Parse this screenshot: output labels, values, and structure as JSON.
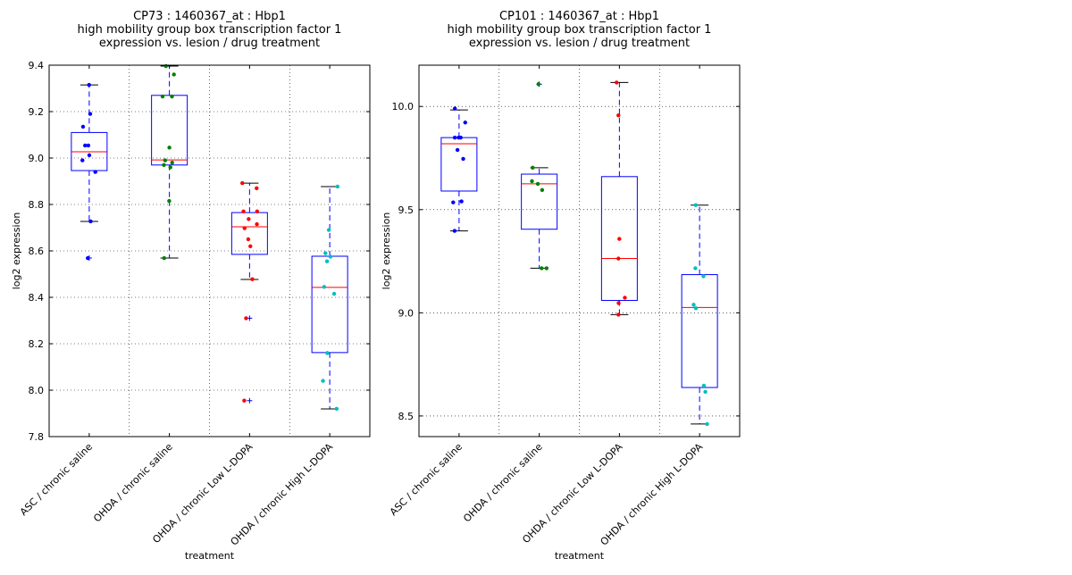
{
  "chart_data": [
    {
      "type": "box",
      "title_lines": [
        "CP73 : 1460367_at : Hbp1",
        "high mobility group box transcription factor 1",
        "expression vs. lesion / drug treatment"
      ],
      "xlabel": "treatment",
      "ylabel": "log2 expression",
      "ylim": [
        7.8,
        9.4
      ],
      "yticks": [
        7.8,
        8.0,
        8.2,
        8.4,
        8.6,
        8.8,
        9.0,
        9.2,
        9.4
      ],
      "ytick_labels": [
        "7.8",
        "8.0",
        "8.2",
        "8.4",
        "8.6",
        "8.8",
        "9.0",
        "9.2",
        "9.4"
      ],
      "grid": true,
      "categories": [
        "ASC / chronic saline",
        "OHDA / chronic saline",
        "OHDA / chronic Low L-DOPA",
        "OHDA / chronic High L-DOPA"
      ],
      "groups": [
        {
          "color": "#0000ff",
          "q1": 8.946,
          "median": 9.027,
          "q3": 9.11,
          "whisker_low": 8.727,
          "whisker_high": 9.315,
          "fliers": [
            8.569
          ],
          "points": [
            9.315,
            9.19,
            9.135,
            9.054,
            9.054,
            9.012,
            8.99,
            8.94,
            8.727,
            8.569
          ]
        },
        {
          "color": "#008000",
          "q1": 8.97,
          "median": 8.992,
          "q3": 9.27,
          "whisker_low": 8.569,
          "whisker_high": 9.396,
          "fliers": [],
          "points": [
            9.396,
            9.36,
            9.265,
            9.265,
            9.045,
            8.99,
            8.98,
            8.97,
            8.96,
            8.815,
            8.569
          ]
        },
        {
          "color": "#ff0000",
          "q1": 8.585,
          "median": 8.704,
          "q3": 8.765,
          "whisker_low": 8.477,
          "whisker_high": 8.892,
          "fliers": [
            8.31,
            7.955
          ],
          "points": [
            8.892,
            8.87,
            8.77,
            8.77,
            8.737,
            8.715,
            8.698,
            8.65,
            8.62,
            8.478,
            8.31,
            7.955
          ]
        },
        {
          "color": "#00bfbf",
          "q1": 8.162,
          "median": 8.443,
          "q3": 8.577,
          "whisker_low": 7.919,
          "whisker_high": 8.877,
          "fliers": [],
          "points": [
            8.877,
            8.69,
            8.59,
            8.575,
            8.555,
            8.445,
            8.415,
            8.16,
            8.16,
            8.04,
            7.92
          ]
        }
      ]
    },
    {
      "type": "box",
      "title_lines": [
        "CP101 : 1460367_at : Hbp1",
        "high mobility group box transcription factor 1",
        "expression vs. lesion / drug treatment"
      ],
      "xlabel": "treatment",
      "ylabel": "log2 expression",
      "ylim": [
        8.4,
        10.2
      ],
      "yticks": [
        8.5,
        9.0,
        9.5,
        10.0
      ],
      "ytick_labels": [
        "8.5",
        "9.0",
        "9.5",
        "10.0"
      ],
      "grid": true,
      "categories": [
        "ASC / chronic saline",
        "OHDA / chronic saline",
        "OHDA / chronic Low L-DOPA",
        "OHDA / chronic High L-DOPA"
      ],
      "groups": [
        {
          "color": "#0000ff",
          "q1": 9.59,
          "median": 9.819,
          "q3": 9.849,
          "whisker_low": 9.397,
          "whisker_high": 9.983,
          "fliers": [],
          "points": [
            9.99,
            9.922,
            9.849,
            9.849,
            9.849,
            9.789,
            9.746,
            9.54,
            9.535,
            9.397
          ]
        },
        {
          "color": "#008000",
          "q1": 9.405,
          "median": 9.625,
          "q3": 9.672,
          "whisker_low": 9.216,
          "whisker_high": 9.703,
          "fliers": [
            10.108
          ],
          "points": [
            10.108,
            9.703,
            9.638,
            9.625,
            9.595,
            9.216,
            9.216
          ]
        },
        {
          "color": "#ff0000",
          "q1": 9.06,
          "median": 9.263,
          "q3": 9.66,
          "whisker_low": 8.991,
          "whisker_high": 10.116,
          "fliers": [],
          "points": [
            10.116,
            9.957,
            9.358,
            9.263,
            9.073,
            9.047,
            8.991
          ]
        },
        {
          "color": "#00bfbf",
          "q1": 8.638,
          "median": 9.026,
          "q3": 9.185,
          "whisker_low": 8.461,
          "whisker_high": 9.522,
          "fliers": [],
          "points": [
            9.522,
            9.216,
            9.177,
            9.039,
            9.022,
            8.647,
            8.617,
            8.461
          ]
        }
      ]
    }
  ]
}
